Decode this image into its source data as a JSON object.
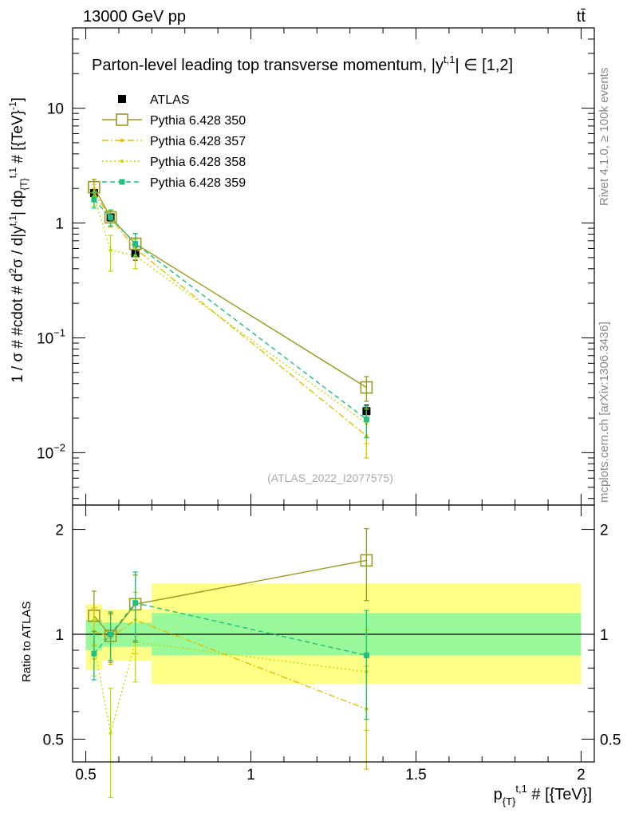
{
  "header": {
    "energy_label": "13000 GeV pp",
    "process_label": "tt̄"
  },
  "side_labels": {
    "rivet": "Rivet 4.1.0, ≥ 100k events",
    "mcplots": "mcplots.cern.ch [arXiv:1306.3436]"
  },
  "chart_data": [
    {
      "type": "line",
      "panel": "main",
      "title": "Parton-level leading top transverse momentum, |y^{t,1}| ∈ [1,2]",
      "watermark": "(ATLAS_2022_I2077575)",
      "ylabel": "1 / σ # #cdot # d²σ / d|y^{t,1}| dp_{T}^{t,1} # [{TeV}⁻¹]",
      "yscale": "log",
      "xlim": [
        0.46,
        2.04
      ],
      "ylim": [
        0.0035,
        50
      ],
      "ytick_labels": [
        {
          "value": 0.01,
          "base": "10",
          "exp": "−2"
        },
        {
          "value": 0.1,
          "base": "10",
          "exp": "−1"
        },
        {
          "value": 1,
          "base": "1",
          "exp": ""
        },
        {
          "value": 10,
          "base": "10",
          "exp": ""
        }
      ],
      "legend_position": "top-left",
      "series": [
        {
          "name": "ATLAS",
          "color": "#000000",
          "marker": "filled-square",
          "line": "none",
          "x": [
            0.525,
            0.575,
            0.65,
            1.35
          ],
          "y": [
            1.82,
            1.12,
            0.545,
            0.023
          ],
          "yerr": [
            0.1,
            0.08,
            0.07,
            0.003
          ]
        },
        {
          "name": "Pythia 6.428 350",
          "color": "#9a9a1e",
          "marker": "open-square",
          "line": "solid",
          "x": [
            0.525,
            0.575,
            0.65,
            1.35
          ],
          "y": [
            2.05,
            1.12,
            0.66,
            0.037
          ],
          "yerr": [
            0.35,
            0.18,
            0.15,
            0.009
          ]
        },
        {
          "name": "Pythia 6.428 357",
          "color": "#e0c000",
          "marker": "dot",
          "line": "dashdot",
          "x": [
            0.525,
            0.575,
            0.65,
            1.35
          ],
          "y": [
            1.85,
            1.1,
            0.6,
            0.014
          ],
          "yerr": [
            0.3,
            0.18,
            0.12,
            0.005
          ]
        },
        {
          "name": "Pythia 6.428 358",
          "color": "#c8d800",
          "marker": "dot",
          "line": "dotted",
          "x": [
            0.525,
            0.575,
            0.65,
            1.35
          ],
          "y": [
            1.7,
            0.58,
            0.52,
            0.018
          ],
          "yerr": [
            0.3,
            0.2,
            0.12,
            0.006
          ]
        },
        {
          "name": "Pythia 6.428 359",
          "color": "#1fbf7f",
          "marker": "filled-square-small",
          "line": "dashed",
          "x": [
            0.525,
            0.575,
            0.65,
            1.35
          ],
          "y": [
            1.6,
            1.12,
            0.66,
            0.0195
          ],
          "yerr": [
            0.25,
            0.18,
            0.15,
            0.006
          ]
        }
      ]
    },
    {
      "type": "line",
      "panel": "ratio",
      "ylabel": "Ratio to ATLAS",
      "xlabel": "p_{T}^{t,1} # [{TeV}]",
      "yscale": "log",
      "xlim": [
        0.46,
        2.04
      ],
      "ylim": [
        0.43,
        2.35
      ],
      "xticks": [
        0.5,
        1,
        1.5,
        2
      ],
      "xtick_labels": [
        "0.5",
        "1",
        "1.5",
        "2"
      ],
      "yticks": [
        0.5,
        1,
        2
      ],
      "ytick_labels": [
        "0.5",
        "1",
        "2"
      ],
      "reference_line": 1,
      "bands": [
        {
          "x0": 0.5,
          "x1": 0.55,
          "stat": [
            0.9,
            1.1
          ],
          "total": [
            0.79,
            1.22
          ]
        },
        {
          "x0": 0.55,
          "x1": 0.6,
          "stat": [
            0.92,
            1.08
          ],
          "total": [
            0.84,
            1.18
          ]
        },
        {
          "x0": 0.6,
          "x1": 0.7,
          "stat": [
            0.92,
            1.08
          ],
          "total": [
            0.84,
            1.18
          ]
        },
        {
          "x0": 0.7,
          "x1": 2.0,
          "stat": [
            0.87,
            1.15
          ],
          "total": [
            0.72,
            1.4
          ]
        }
      ],
      "band_colors": {
        "total": "#ffff88",
        "stat": "#99f899"
      },
      "series": [
        {
          "name": "Pythia 6.428 350",
          "color": "#9a9a1e",
          "marker": "open-square",
          "line": "solid",
          "x": [
            0.525,
            0.575,
            0.65,
            1.35
          ],
          "y": [
            1.13,
            0.99,
            1.22,
            1.63
          ],
          "yerr": [
            0.2,
            0.16,
            0.26,
            0.38
          ]
        },
        {
          "name": "Pythia 6.428 357",
          "color": "#e0c000",
          "marker": "dot",
          "line": "dashdot",
          "x": [
            0.525,
            0.575,
            0.65,
            1.35
          ],
          "y": [
            1.02,
            0.98,
            1.1,
            0.61
          ],
          "yerr": [
            0.17,
            0.16,
            0.22,
            0.2
          ]
        },
        {
          "name": "Pythia 6.428 358",
          "color": "#c8d800",
          "marker": "dot",
          "line": "dotted",
          "x": [
            0.525,
            0.575,
            0.65,
            1.35
          ],
          "y": [
            0.93,
            0.52,
            0.95,
            0.78
          ],
          "yerr": [
            0.17,
            0.18,
            0.22,
            0.25
          ]
        },
        {
          "name": "Pythia 6.428 359",
          "color": "#1fbf7f",
          "marker": "filled-square-small",
          "line": "dashed",
          "x": [
            0.525,
            0.575,
            0.65,
            1.35
          ],
          "y": [
            0.88,
            1.0,
            1.23,
            0.87
          ],
          "yerr": [
            0.14,
            0.16,
            0.28,
            0.3
          ]
        }
      ]
    }
  ]
}
